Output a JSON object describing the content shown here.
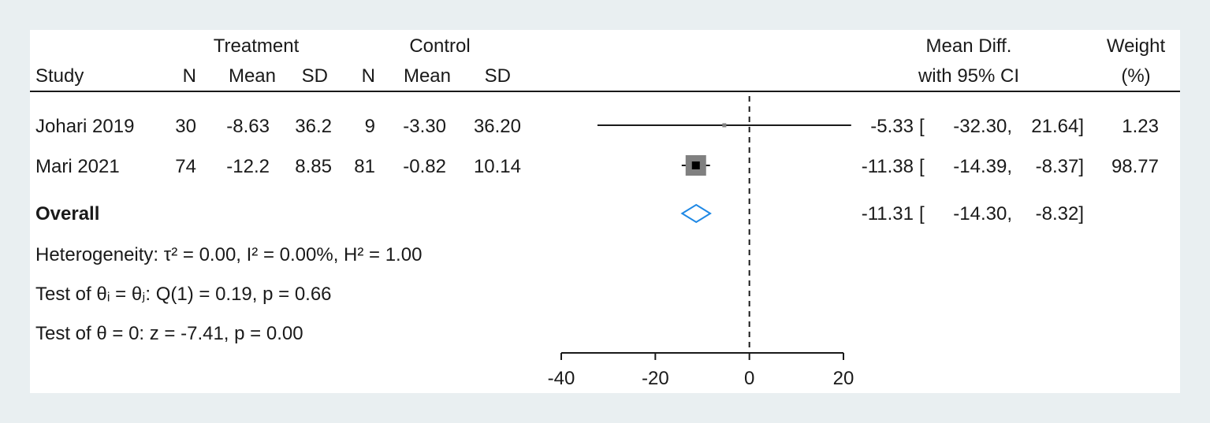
{
  "chart_data": {
    "type": "forest",
    "headers": {
      "treatment": "Treatment",
      "control": "Control",
      "study": "Study",
      "n": "N",
      "mean": "Mean",
      "sd": "SD",
      "effect_line1": "Mean Diff.",
      "effect_line2": "with 95% CI",
      "weight_line1": "Weight",
      "weight_line2": "(%)"
    },
    "studies": [
      {
        "name": "Johari 2019",
        "t_n": "30",
        "t_mean": "-8.63",
        "t_sd": "36.2",
        "c_n": "9",
        "c_mean": "-3.30",
        "c_sd": "36.20",
        "md": -5.33,
        "lo": -32.3,
        "hi": 21.64,
        "md_text": "-5.33",
        "lo_text": "-32.30,",
        "hi_text": "21.64]",
        "weight": 1.23,
        "weight_text": "1.23"
      },
      {
        "name": "Mari 2021",
        "t_n": "74",
        "t_mean": "-12.2",
        "t_sd": "8.85",
        "c_n": "81",
        "c_mean": "-0.82",
        "c_sd": "10.14",
        "md": -11.38,
        "lo": -14.39,
        "hi": -8.37,
        "md_text": "-11.38",
        "lo_text": "-14.39,",
        "hi_text": "-8.37]",
        "weight": 98.77,
        "weight_text": "98.77"
      }
    ],
    "overall": {
      "label": "Overall",
      "md": -11.31,
      "lo": -14.3,
      "hi": -8.32,
      "md_text": "-11.31",
      "lo_text": "-14.30,",
      "hi_text": "-8.32]"
    },
    "bracket_open": "[",
    "stats": {
      "heterogeneity": "Heterogeneity: τ² = 0.00, I² = 0.00%, H² = 1.00",
      "test_equal": "Test of θᵢ = θⱼ: Q(1) = 0.19, p = 0.66",
      "test_zero": "Test of θ = 0: z = -7.41, p = 0.00"
    },
    "xaxis": {
      "min": -40,
      "max": 20,
      "ticks": [
        -40,
        -20,
        0,
        20
      ],
      "reference_line": 0
    },
    "colors": {
      "overall_diamond": "#1e88e5",
      "study_box": "#808080",
      "point": "#000000"
    }
  }
}
